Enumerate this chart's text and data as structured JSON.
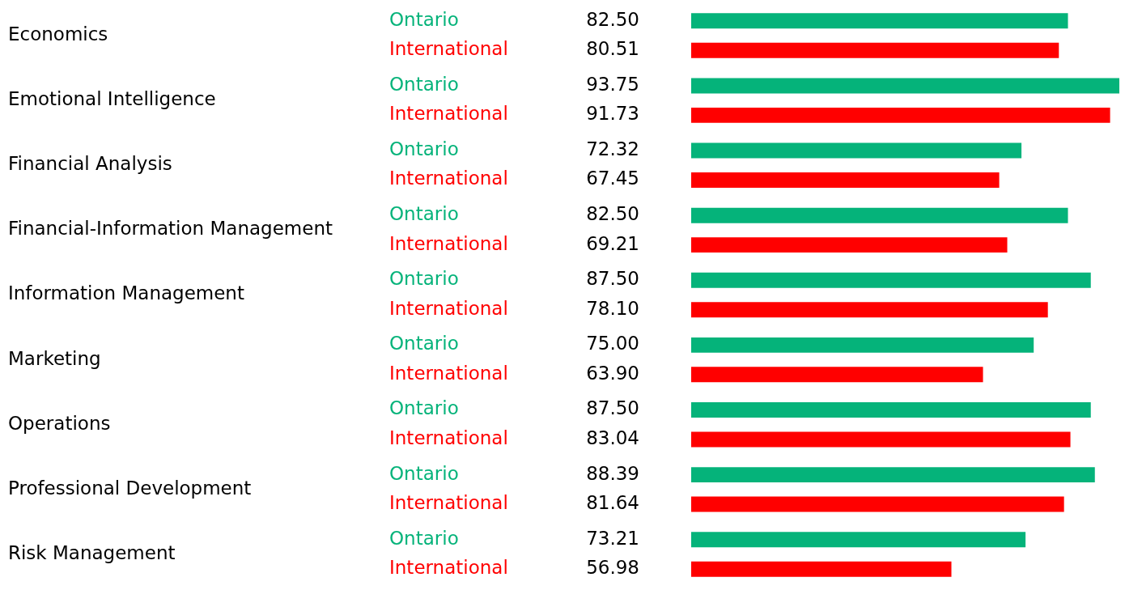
{
  "chart_data": {
    "type": "bar",
    "orientation": "horizontal",
    "categories": [
      "Economics",
      "Emotional Intelligence",
      "Financial Analysis",
      "Financial-Information Management",
      "Information Management",
      "Marketing",
      "Operations",
      "Professional Development",
      "Risk Management"
    ],
    "xlim": [
      0,
      93.75
    ],
    "series": [
      {
        "name": "Ontario",
        "color": "#05b37a",
        "values": [
          82.5,
          93.75,
          72.32,
          82.5,
          87.5,
          75.0,
          87.5,
          88.39,
          73.21
        ],
        "value_labels": [
          "82.50",
          "93.75",
          "72.32",
          "82.50",
          "87.50",
          "75.00",
          "87.50",
          "88.39",
          "73.21"
        ]
      },
      {
        "name": "International",
        "color": "#ff0000",
        "values": [
          80.51,
          91.73,
          67.45,
          69.21,
          78.1,
          63.9,
          83.04,
          81.64,
          56.98
        ],
        "value_labels": [
          "80.51",
          "91.73",
          "67.45",
          "69.21",
          "78.10",
          "63.90",
          "83.04",
          "81.64",
          "56.98"
        ]
      }
    ]
  }
}
